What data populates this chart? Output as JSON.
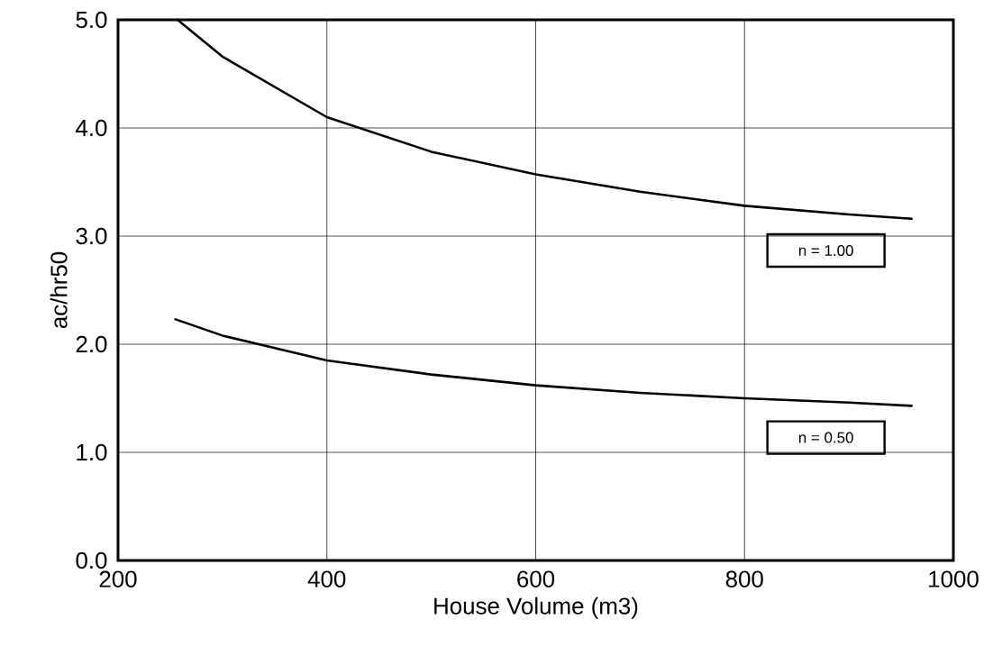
{
  "chart_data": {
    "type": "line",
    "xlabel": "House Volume (m3)",
    "ylabel": "ac/hr50",
    "xlim": [
      200,
      1000
    ],
    "ylim": [
      0,
      5
    ],
    "xticks": [
      200,
      400,
      600,
      800,
      1000
    ],
    "yticks": [
      {
        "value": 0,
        "label": "0.0"
      },
      {
        "value": 1,
        "label": "1.0"
      },
      {
        "value": 2,
        "label": "2.0"
      },
      {
        "value": 3,
        "label": "3.0"
      },
      {
        "value": 4,
        "label": "4.0"
      },
      {
        "value": 5,
        "label": "5.0"
      }
    ],
    "grid": true,
    "legend": false,
    "marker": "none",
    "line_style": "solid",
    "series": [
      {
        "name": "n = 1.00",
        "color": "#000000",
        "x": [
          257,
          300,
          400,
          500,
          600,
          700,
          800,
          900,
          960
        ],
        "values": [
          5.0,
          4.66,
          4.1,
          3.78,
          3.57,
          3.41,
          3.28,
          3.2,
          3.16
        ]
      },
      {
        "name": "n = 0.50",
        "color": "#000000",
        "x": [
          255,
          300,
          400,
          500,
          600,
          700,
          800,
          900,
          960
        ],
        "values": [
          2.23,
          2.08,
          1.85,
          1.72,
          1.62,
          1.55,
          1.5,
          1.46,
          1.43
        ]
      }
    ]
  }
}
